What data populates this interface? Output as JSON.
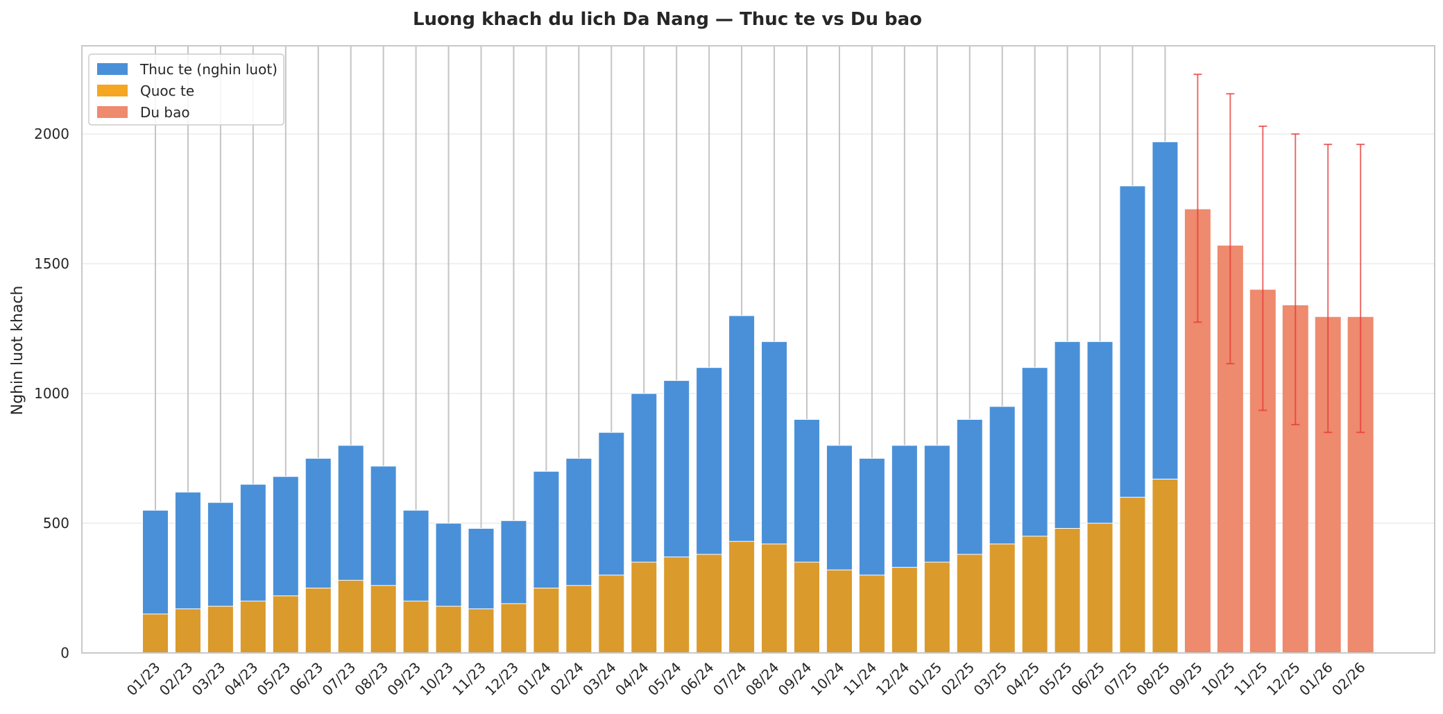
{
  "chart_data": {
    "type": "bar",
    "title": "Luong khach du lich Da Nang — Thuc te vs Du bao",
    "xlabel": "",
    "ylabel": "Nghin luot khach",
    "ylim": [
      0,
      2340
    ],
    "yticks": [
      0,
      500,
      1000,
      1500,
      2000
    ],
    "grid": true,
    "legend_position": "top-left",
    "colors": {
      "actual": "#4a90d9",
      "international": "#f5a623",
      "international_overlap": "#db9a2c",
      "forecast": "#ee8a6e",
      "error_bar": "#e53935",
      "axis": "#c8c8c8",
      "grid": "#ebebeb",
      "vline": "#c4c4c4"
    },
    "legend": [
      {
        "key": "actual",
        "label": "Thuc te (nghin luot)"
      },
      {
        "key": "international",
        "label": "Quoc te"
      },
      {
        "key": "forecast",
        "label": "Du bao"
      }
    ],
    "actual": {
      "categories": [
        "01/23",
        "02/23",
        "03/23",
        "04/23",
        "05/23",
        "06/23",
        "07/23",
        "08/23",
        "09/23",
        "10/23",
        "11/23",
        "12/23",
        "01/24",
        "02/24",
        "03/24",
        "04/24",
        "05/24",
        "06/24",
        "07/24",
        "08/24",
        "09/24",
        "10/24",
        "11/24",
        "12/24",
        "01/25",
        "02/25",
        "03/25",
        "04/25",
        "05/25",
        "06/25",
        "07/25",
        "08/25"
      ],
      "values": [
        550,
        620,
        580,
        650,
        680,
        750,
        800,
        720,
        550,
        500,
        480,
        510,
        700,
        750,
        850,
        1000,
        1050,
        1100,
        1300,
        1200,
        900,
        800,
        750,
        800,
        800,
        900,
        950,
        1100,
        1200,
        1200,
        1800,
        1970
      ],
      "international": [
        150,
        170,
        180,
        200,
        220,
        250,
        280,
        260,
        200,
        180,
        170,
        190,
        250,
        260,
        300,
        350,
        370,
        380,
        430,
        420,
        350,
        320,
        300,
        330,
        350,
        380,
        420,
        450,
        480,
        500,
        600,
        670
      ]
    },
    "forecast": {
      "categories": [
        "09/25",
        "10/25",
        "11/25",
        "12/25",
        "01/26",
        "02/26"
      ],
      "values": [
        1710,
        1570,
        1400,
        1340,
        1295,
        1295
      ],
      "lower": [
        1275,
        1115,
        935,
        880,
        850,
        850
      ],
      "upper": [
        2230,
        2155,
        2030,
        2000,
        1960,
        1960
      ]
    }
  }
}
